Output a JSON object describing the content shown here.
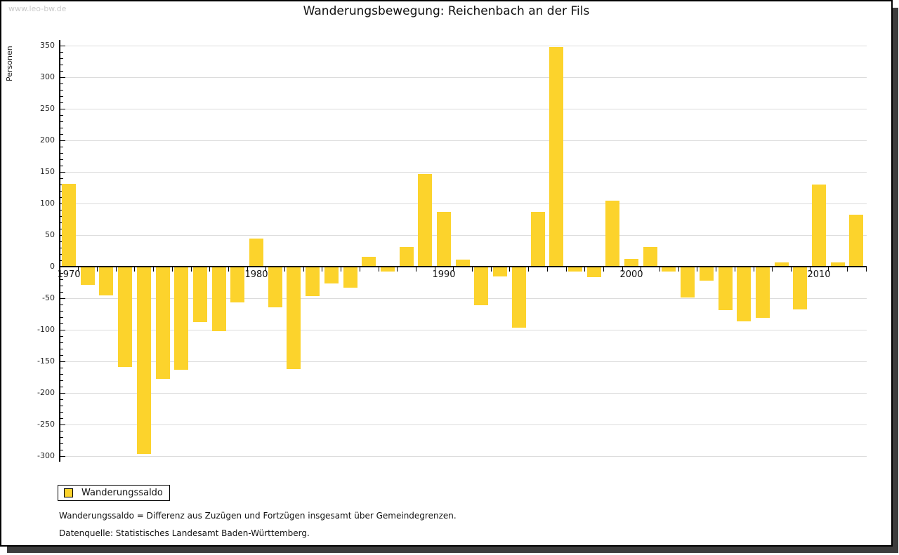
{
  "watermark": "www.leo-bw.de",
  "title": "Wanderungsbewegung: Reichenbach an der Fils",
  "y_axis_label": "Personen",
  "legend": {
    "label": "Wanderungssaldo",
    "swatch_color": "#fcd32c"
  },
  "footnotes": [
    "Wanderungssaldo = Differenz aus Zuzügen und Fortzügen insgesamt über Gemeindegrenzen.",
    "Datenquelle: Statistisches Landesamt Baden-Württemberg."
  ],
  "chart_data": {
    "type": "bar",
    "title": "Wanderungsbewegung: Reichenbach an der Fils",
    "xlabel": "",
    "ylabel": "Personen",
    "series_name": "Wanderungssaldo",
    "x": [
      1970,
      1971,
      1972,
      1973,
      1974,
      1975,
      1976,
      1977,
      1978,
      1979,
      1980,
      1981,
      1982,
      1983,
      1984,
      1985,
      1986,
      1987,
      1988,
      1989,
      1990,
      1991,
      1992,
      1993,
      1994,
      1995,
      1996,
      1997,
      1998,
      1999,
      2000,
      2001,
      2002,
      2003,
      2004,
      2005,
      2006,
      2007,
      2008,
      2009,
      2010,
      2011,
      2012
    ],
    "values": [
      130,
      -28,
      -44,
      -158,
      -296,
      -177,
      -162,
      -87,
      -101,
      -55,
      43,
      -63,
      -161,
      -46,
      -26,
      -32,
      15,
      -7,
      30,
      146,
      86,
      10,
      -60,
      -14,
      -95,
      86,
      347,
      -7,
      -15,
      103,
      11,
      30,
      -7,
      -48,
      -21,
      -68,
      -85,
      -80,
      6,
      -67,
      129,
      6,
      81
    ],
    "ylim": [
      -300,
      350
    ],
    "y_major_step": 50,
    "y_minor_step": 10,
    "x_labeled_ticks": [
      1970,
      1980,
      1990,
      2000,
      2010
    ],
    "grid": true,
    "legend_position": "bottom-left",
    "bar_color": "#fcd32c",
    "gridline_color": "#dcdcdc"
  }
}
